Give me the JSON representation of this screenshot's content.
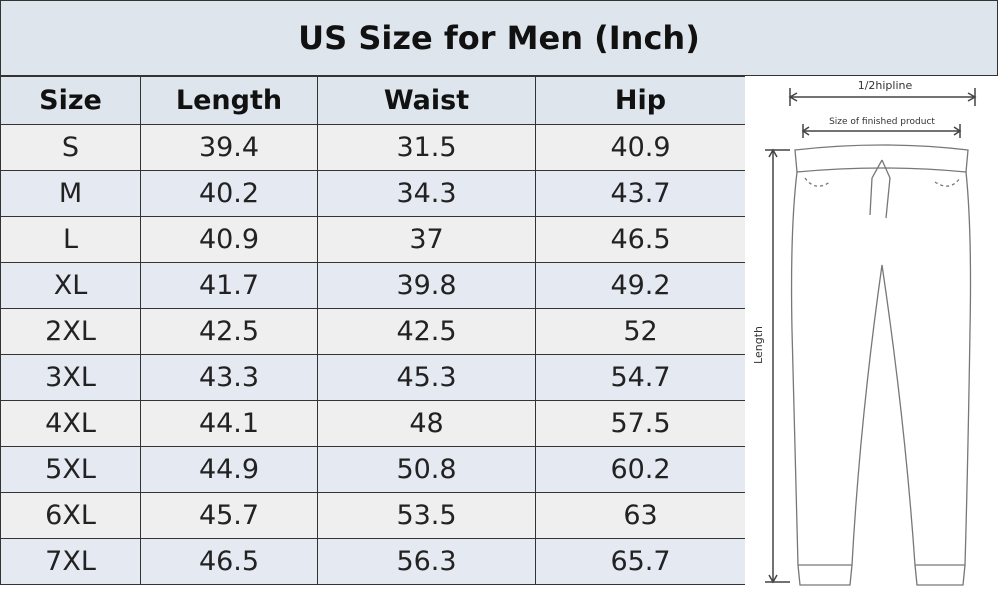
{
  "header": {
    "title": "US Size for Men  (Inch)"
  },
  "table": {
    "columns": [
      "Size",
      "Length",
      "Waist",
      "Hip"
    ],
    "rows": [
      [
        "S",
        "39.4",
        "31.5",
        "40.9"
      ],
      [
        "M",
        "40.2",
        "34.3",
        "43.7"
      ],
      [
        "L",
        "40.9",
        "37",
        "46.5"
      ],
      [
        "XL",
        "41.7",
        "39.8",
        "49.2"
      ],
      [
        "2XL",
        "42.5",
        "42.5",
        "52"
      ],
      [
        "3XL",
        "43.3",
        "45.3",
        "54.7"
      ],
      [
        "4XL",
        "44.1",
        "48",
        "57.5"
      ],
      [
        "5XL",
        "44.9",
        "50.8",
        "60.2"
      ],
      [
        "6XL",
        "45.7",
        "53.5",
        "63"
      ],
      [
        "7XL",
        "46.5",
        "56.3",
        "65.7"
      ]
    ]
  },
  "diagram": {
    "hipline": "1/2hipline",
    "finished": "Size of finished product",
    "length": "Length"
  }
}
